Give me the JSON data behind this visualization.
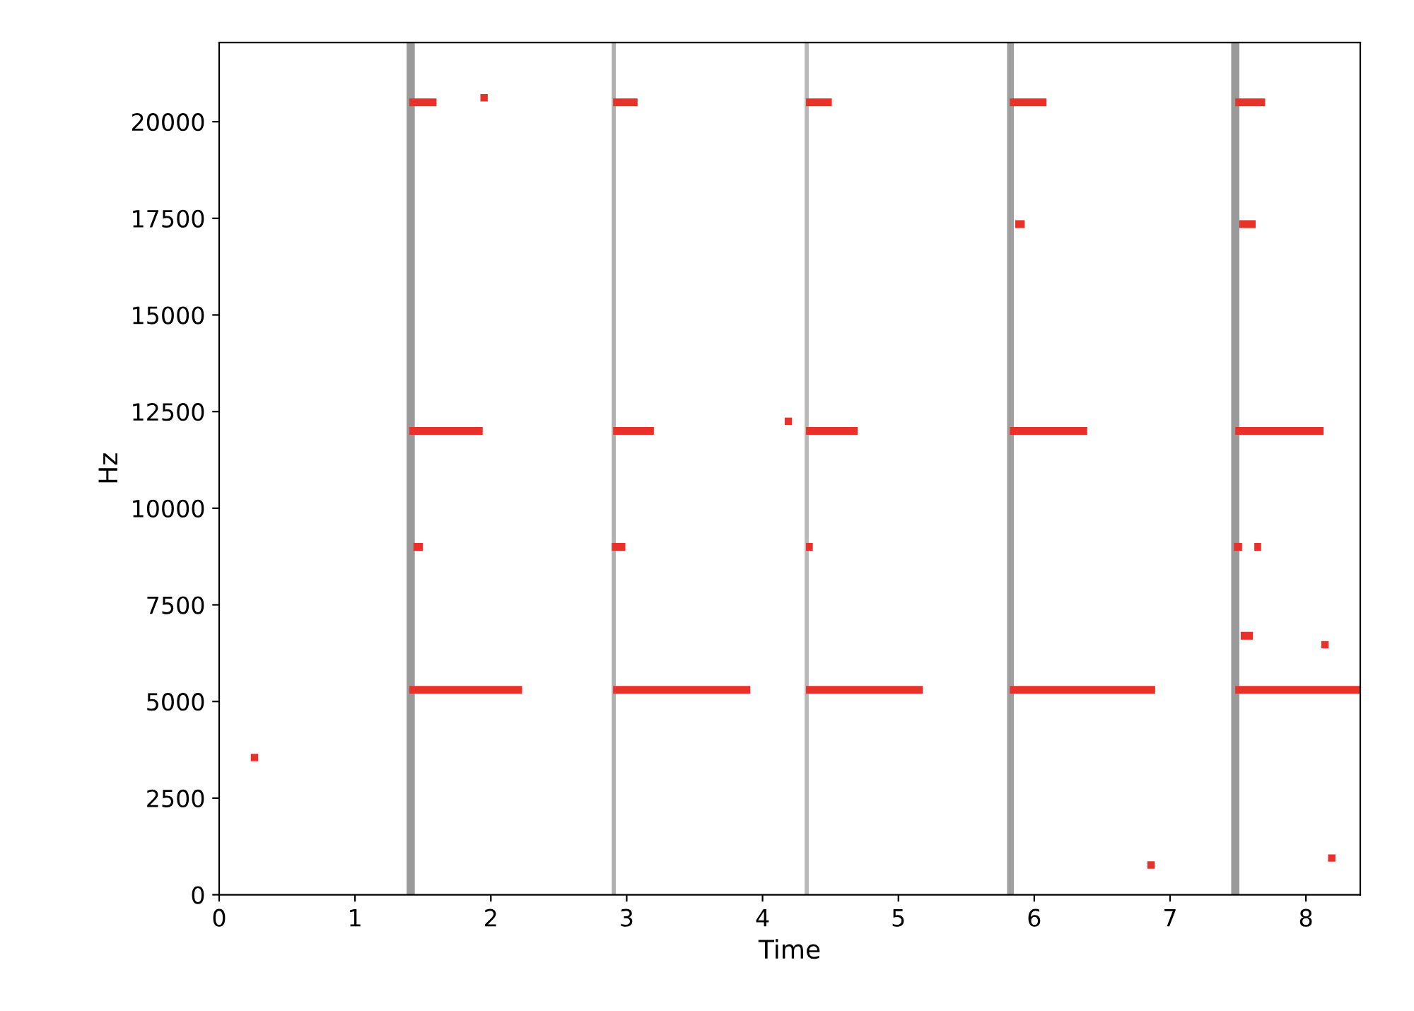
{
  "chart_data": {
    "type": "line",
    "xlabel": "Time",
    "ylabel": "Hz",
    "xlim": [
      0,
      8.4
    ],
    "ylim": [
      0,
      22050
    ],
    "xticks": [
      0,
      1,
      2,
      3,
      4,
      5,
      6,
      7,
      8
    ],
    "yticks": [
      0,
      2500,
      5000,
      7500,
      10000,
      12500,
      15000,
      17500,
      20000
    ],
    "grid": false,
    "line_style": "solid",
    "marker": "none",
    "bands": [
      {
        "axis": "x",
        "from": 1.38,
        "to": 1.44,
        "color": "#9a9a9a"
      },
      {
        "axis": "x",
        "from": 2.89,
        "to": 2.92,
        "color": "#b0b0b0"
      },
      {
        "axis": "x",
        "from": 4.31,
        "to": 4.34,
        "color": "#b8b8b8"
      },
      {
        "axis": "x",
        "from": 5.8,
        "to": 5.85,
        "color": "#a0a0a0"
      },
      {
        "axis": "x",
        "from": 7.45,
        "to": 7.51,
        "color": "#9a9a9a"
      }
    ],
    "series": [
      {
        "color": "#e8312a",
        "x": [
          1.4,
          2.23
        ],
        "values": [
          5300,
          5300
        ]
      },
      {
        "color": "#e8312a",
        "x": [
          2.9,
          3.91
        ],
        "values": [
          5300,
          5300
        ]
      },
      {
        "color": "#e8312a",
        "x": [
          4.32,
          5.18
        ],
        "values": [
          5300,
          5300
        ]
      },
      {
        "color": "#e8312a",
        "x": [
          5.82,
          6.89
        ],
        "values": [
          5300,
          5300
        ]
      },
      {
        "color": "#e8312a",
        "x": [
          7.48,
          8.4
        ],
        "values": [
          5300,
          5300
        ]
      },
      {
        "color": "#e8312a",
        "x": [
          1.4,
          1.94
        ],
        "values": [
          12000,
          12000
        ]
      },
      {
        "color": "#e8312a",
        "x": [
          2.9,
          3.2
        ],
        "values": [
          12000,
          12000
        ]
      },
      {
        "color": "#e8312a",
        "x": [
          4.32,
          4.7
        ],
        "values": [
          12000,
          12000
        ]
      },
      {
        "color": "#e8312a",
        "x": [
          5.82,
          6.39
        ],
        "values": [
          12000,
          12000
        ]
      },
      {
        "color": "#e8312a",
        "x": [
          7.48,
          8.13
        ],
        "values": [
          12000,
          12000
        ]
      },
      {
        "color": "#e8312a",
        "x": [
          1.4,
          1.6
        ],
        "values": [
          20500,
          20500
        ]
      },
      {
        "color": "#e8312a",
        "x": [
          2.9,
          3.08
        ],
        "values": [
          20500,
          20500
        ]
      },
      {
        "color": "#e8312a",
        "x": [
          4.32,
          4.51
        ],
        "values": [
          20500,
          20500
        ]
      },
      {
        "color": "#e8312a",
        "x": [
          5.82,
          6.09
        ],
        "values": [
          20500,
          20500
        ]
      },
      {
        "color": "#e8312a",
        "x": [
          7.48,
          7.7
        ],
        "values": [
          20500,
          20500
        ]
      },
      {
        "color": "#e8312a",
        "x": [
          1.43,
          1.5
        ],
        "values": [
          9000,
          9000
        ]
      },
      {
        "color": "#e8312a",
        "x": [
          2.89,
          2.99
        ],
        "values": [
          9000,
          9000
        ]
      },
      {
        "color": "#e8312a",
        "x": [
          4.32,
          4.37
        ],
        "values": [
          9000,
          9000
        ]
      },
      {
        "color": "#e8312a",
        "x": [
          7.47,
          7.53
        ],
        "values": [
          9000,
          9000
        ]
      },
      {
        "color": "#e8312a",
        "x": [
          7.62,
          7.67
        ],
        "values": [
          9000,
          9000
        ]
      },
      {
        "color": "#e8312a",
        "x": [
          5.86,
          5.93
        ],
        "values": [
          17350,
          17350
        ]
      },
      {
        "color": "#e8312a",
        "x": [
          7.51,
          7.63
        ],
        "values": [
          17350,
          17350
        ]
      },
      {
        "color": "#e8312a",
        "x": [
          7.52,
          7.61
        ],
        "values": [
          6700,
          6700
        ]
      },
      {
        "type": "scatter",
        "color": "#e8312a",
        "marker": "square",
        "x": [
          0.26,
          1.95,
          4.19,
          6.86,
          8.14,
          8.19
        ],
        "values": [
          3550,
          20620,
          12250,
          770,
          6470,
          950
        ]
      }
    ]
  }
}
